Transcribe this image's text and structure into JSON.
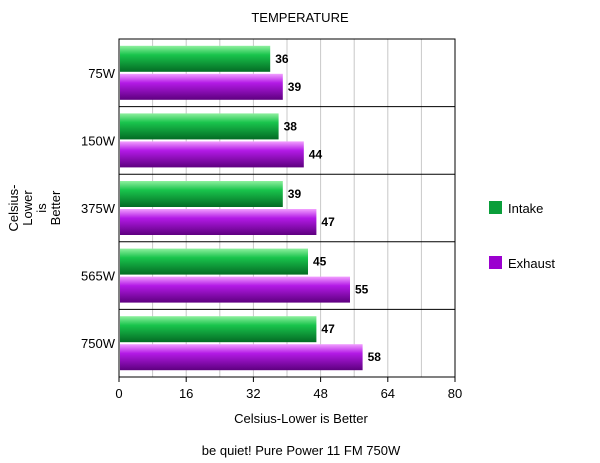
{
  "chart_data": {
    "type": "bar",
    "orientation": "horizontal",
    "title": "TEMPERATURE",
    "xlabel": "Celsius-Lower is Better",
    "ylabel": "Celsius-Lower is Better",
    "ylabel_lines": [
      "Celsius-",
      "Lower",
      "is",
      "Better"
    ],
    "subtitle": "be quiet! Pure Power 11 FM 750W",
    "categories": [
      "75W",
      "150W",
      "375W",
      "565W",
      "750W"
    ],
    "series": [
      {
        "name": "Intake",
        "values": [
          36,
          38,
          39,
          45,
          47
        ],
        "color": "#0a9e3a"
      },
      {
        "name": "Exhaust",
        "values": [
          39,
          44,
          47,
          55,
          58
        ],
        "color": "#9b00cf"
      }
    ],
    "xlim": [
      0,
      80
    ],
    "xticks": [
      0,
      16,
      32,
      48,
      64,
      80
    ],
    "grid": true,
    "legend_position": "right"
  }
}
